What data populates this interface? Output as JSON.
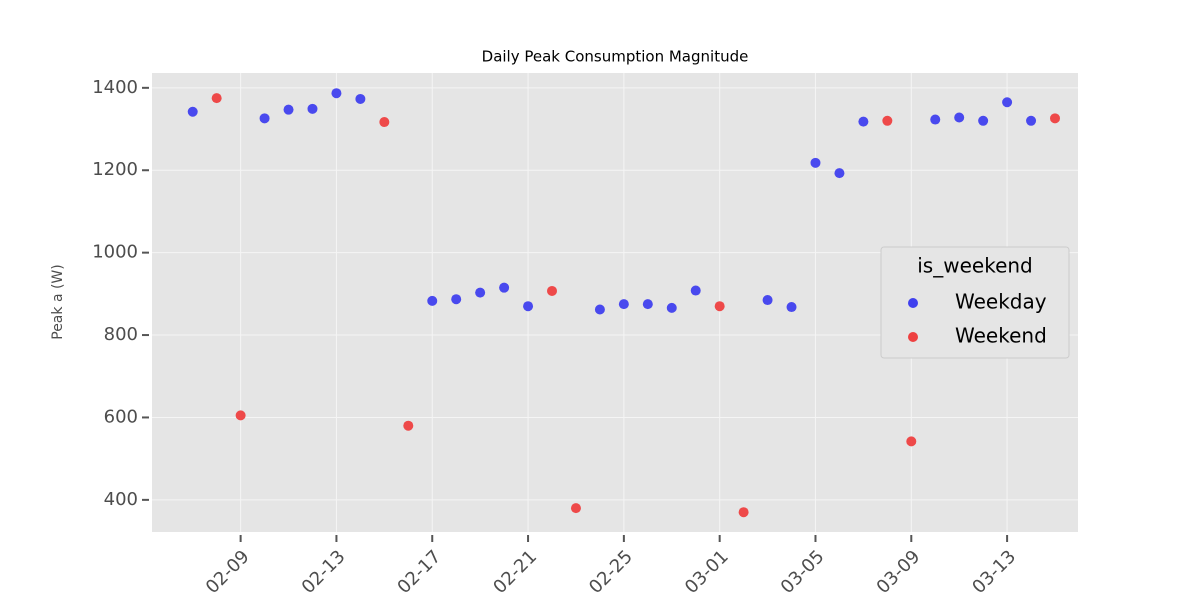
{
  "chart_data": {
    "type": "scatter",
    "title": "Daily Peak Consumption Magnitude",
    "y_label": "Peak a (W)",
    "x": [
      "02-07",
      "02-08",
      "02-09",
      "02-10",
      "02-11",
      "02-12",
      "02-13",
      "02-14",
      "02-15",
      "02-16",
      "02-17",
      "02-18",
      "02-19",
      "02-20",
      "02-21",
      "02-22",
      "02-23",
      "02-24",
      "02-25",
      "02-26",
      "02-27",
      "02-28",
      "03-01",
      "03-02",
      "03-03",
      "03-04",
      "03-05",
      "03-06",
      "03-07",
      "03-08",
      "03-09",
      "03-10",
      "03-11",
      "03-12",
      "03-13",
      "03-14",
      "03-15"
    ],
    "series": [
      {
        "name": "Weekday",
        "color": "#4040ee",
        "values": [
          1342,
          null,
          null,
          1326,
          1347,
          1349,
          1387,
          1373,
          null,
          null,
          883,
          887,
          903,
          915,
          870,
          null,
          null,
          862,
          875,
          875,
          866,
          908,
          null,
          null,
          885,
          868,
          1218,
          1193,
          1318,
          null,
          null,
          1323,
          1328,
          1320,
          1365,
          1320,
          null
        ]
      },
      {
        "name": "Weekend",
        "color": "#ee4040",
        "values": [
          null,
          1375,
          605,
          null,
          null,
          null,
          null,
          null,
          1317,
          580,
          null,
          null,
          null,
          null,
          null,
          907,
          380,
          null,
          null,
          null,
          null,
          null,
          870,
          370,
          null,
          null,
          null,
          null,
          null,
          1320,
          542,
          null,
          null,
          null,
          null,
          null,
          1326
        ]
      }
    ],
    "legend_title": "is_weekend",
    "legend": "right",
    "xticks": [
      "02-09",
      "02-13",
      "02-17",
      "02-21",
      "02-25",
      "03-01",
      "03-05",
      "03-09",
      "03-13"
    ],
    "ylim": [
      322,
      1436
    ],
    "yticks": [
      400,
      600,
      800,
      1000,
      1200,
      1400
    ],
    "grid": true
  }
}
